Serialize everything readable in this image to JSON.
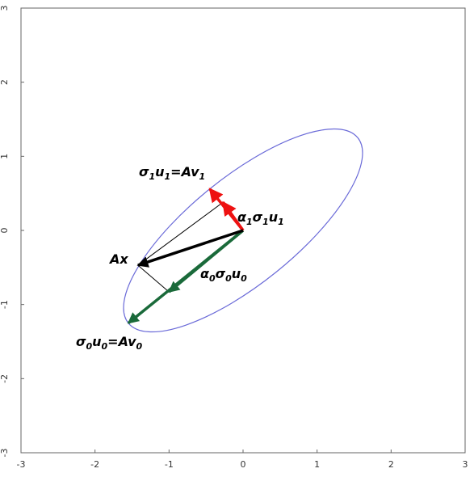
{
  "chart_data": {
    "type": "diagram",
    "xlim": [
      -3,
      3
    ],
    "ylim": [
      -3,
      3
    ],
    "x_ticks": [
      "-3",
      "-2",
      "-1",
      "0",
      "1",
      "2",
      "3"
    ],
    "y_ticks": [
      "-3",
      "-2",
      "-1",
      "0",
      "1",
      "2",
      "3"
    ],
    "grid": false,
    "ellipse": {
      "color": "#6a6ad8",
      "center": [
        0,
        0
      ],
      "semi_axis_0": [
        -1.55,
        -1.25
      ],
      "semi_axis_1": [
        -0.45,
        0.56
      ]
    },
    "vectors": {
      "u0": {
        "from": [
          0,
          0
        ],
        "to": [
          -1.55,
          -1.25
        ],
        "color": "#1a6a3a"
      },
      "alpha0_u0": {
        "from": [
          0,
          0
        ],
        "to": [
          -1.0,
          -0.83
        ],
        "color": "#1a6a3a"
      },
      "u1": {
        "from": [
          0,
          0
        ],
        "to": [
          -0.45,
          0.56
        ],
        "color": "#ee1111"
      },
      "alpha1_u1": {
        "from": [
          0,
          0
        ],
        "to": [
          -0.27,
          0.38
        ],
        "color": "#ee1111"
      },
      "Ax": {
        "from": [
          0,
          0
        ],
        "to": [
          -1.42,
          -0.47
        ],
        "color": "#000000"
      }
    },
    "construction_lines": [
      {
        "from": [
          -1.42,
          -0.47
        ],
        "to": [
          -0.27,
          0.38
        ]
      },
      {
        "from": [
          -1.42,
          -0.47
        ],
        "to": [
          -1.0,
          -0.83
        ]
      }
    ],
    "labels": {
      "sigma1_u1": {
        "greek": "σ",
        "sub1": "1",
        "main": "u",
        "sub2": "1",
        "eq": "=Av",
        "sub3": "1"
      },
      "alpha1": {
        "a": "α",
        "as": "1",
        "s": "σ",
        "ss": "1",
        "u": "u",
        "us": "1"
      },
      "ax": "Ax",
      "alpha0": {
        "a": "α",
        "as": "0",
        "s": "σ",
        "ss": "0",
        "u": "u",
        "us": "0"
      },
      "sigma0_u0": {
        "greek": "σ",
        "sub1": "0",
        "main": "u",
        "sub2": "0",
        "eq": "=Av",
        "sub3": "0"
      }
    }
  }
}
